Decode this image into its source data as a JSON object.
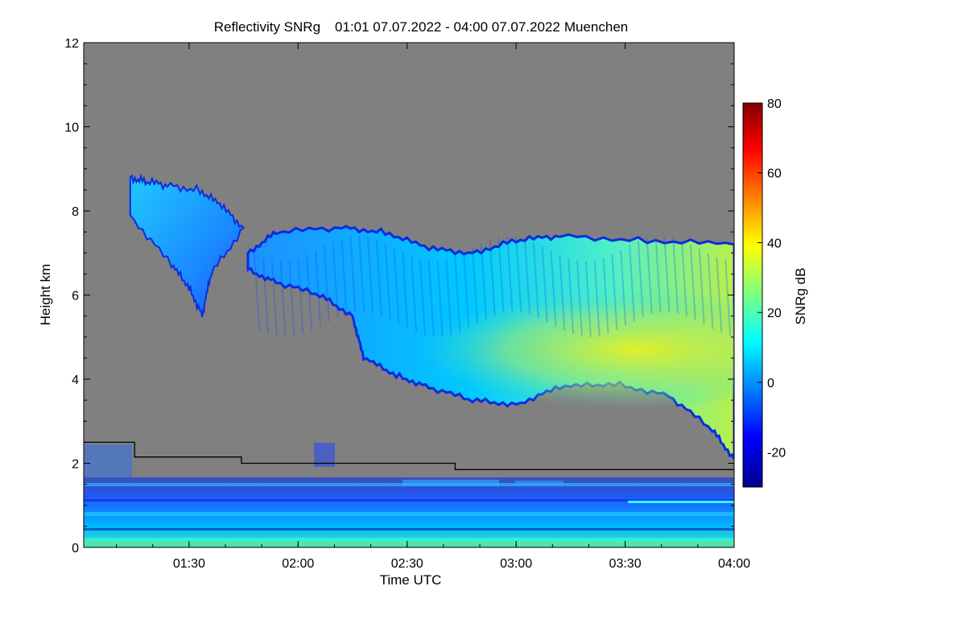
{
  "chart_data": {
    "type": "heatmap",
    "title": "Reflectivity SNRg",
    "time_range": "01:01 07.07.2022 - 04:00 07.07.2022",
    "location": "Muenchen",
    "xlabel": "Time UTC",
    "ylabel": "Height km",
    "colorbar_label": "SNRg dB",
    "x_range_hours": [
      1.0167,
      4.0
    ],
    "y_range_km": [
      0,
      12
    ],
    "color_range_db": [
      -30,
      80
    ],
    "x_ticks": [
      {
        "label": "01:30",
        "value": 1.5
      },
      {
        "label": "02:00",
        "value": 2.0
      },
      {
        "label": "02:30",
        "value": 2.5
      },
      {
        "label": "03:00",
        "value": 3.0
      },
      {
        "label": "03:30",
        "value": 3.5
      },
      {
        "label": "04:00",
        "value": 4.0
      }
    ],
    "y_ticks": [
      0,
      2,
      4,
      6,
      8,
      10,
      12
    ],
    "colorbar_ticks": [
      80,
      60,
      40,
      20,
      0,
      -20
    ],
    "cloud_fragment": {
      "top_km": [
        [
          1.23,
          8.8
        ],
        [
          1.3,
          8.7
        ],
        [
          1.4,
          8.6
        ],
        [
          1.55,
          8.5
        ],
        [
          1.65,
          8.1
        ],
        [
          1.75,
          7.6
        ]
      ],
      "bottom_km": [
        [
          1.75,
          7.6
        ],
        [
          1.6,
          6.5
        ],
        [
          1.56,
          5.5
        ],
        [
          1.5,
          6.2
        ],
        [
          1.42,
          6.7
        ],
        [
          1.23,
          7.9
        ]
      ]
    },
    "cloud_main": {
      "top_km": [
        [
          1.77,
          7.0
        ],
        [
          1.9,
          7.5
        ],
        [
          2.2,
          7.6
        ],
        [
          2.4,
          7.5
        ],
        [
          2.6,
          7.1
        ],
        [
          2.8,
          7.0
        ],
        [
          3.0,
          7.3
        ],
        [
          3.2,
          7.4
        ],
        [
          3.6,
          7.3
        ],
        [
          4.0,
          7.2
        ]
      ],
      "base_km": [
        [
          4.0,
          2.1
        ],
        [
          3.9,
          2.8
        ],
        [
          3.7,
          3.6
        ],
        [
          3.45,
          3.9
        ],
        [
          3.2,
          3.8
        ],
        [
          3.0,
          3.4
        ],
        [
          2.8,
          3.5
        ],
        [
          2.6,
          3.8
        ],
        [
          2.45,
          4.1
        ],
        [
          2.3,
          4.5
        ],
        [
          2.25,
          5.5
        ],
        [
          2.1,
          6.0
        ],
        [
          1.9,
          6.3
        ],
        [
          1.77,
          6.6
        ]
      ]
    },
    "core_max_snr_db": 40,
    "boundary_layer_height_km": [
      {
        "t": 1.0167,
        "h": 2.5
      },
      {
        "t": 1.25,
        "h": 2.5
      },
      {
        "t": 1.25,
        "h": 2.15
      },
      {
        "t": 1.74,
        "h": 2.15
      },
      {
        "t": 1.74,
        "h": 2.0
      },
      {
        "t": 2.72,
        "h": 2.0
      },
      {
        "t": 2.72,
        "h": 1.85
      },
      {
        "t": 4.0,
        "h": 1.85
      }
    ],
    "low_level_echo_top_km": 1.7
  }
}
